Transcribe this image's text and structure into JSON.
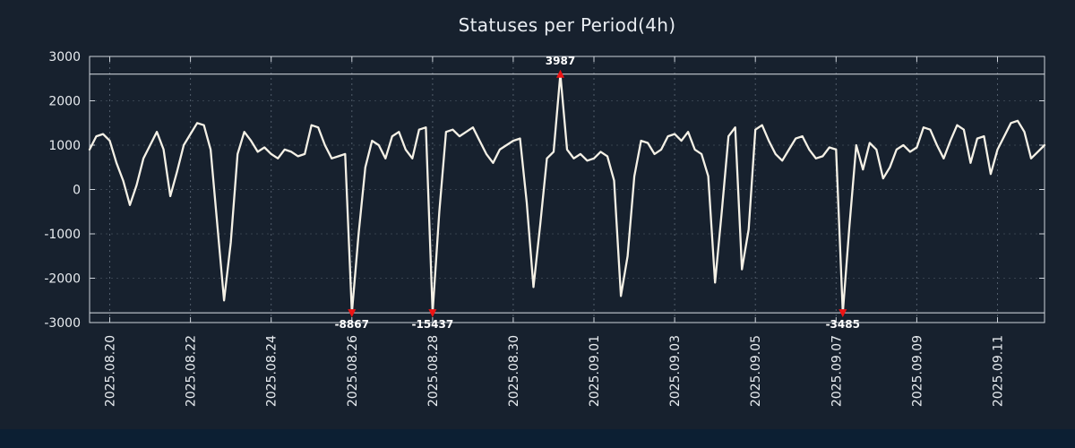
{
  "page": {
    "background_color": "#17212e",
    "footer_band_color": "#0c1f33"
  },
  "chart_data": {
    "type": "line",
    "title": "Statuses per Period(4h)",
    "xlabel": "",
    "ylabel": "",
    "ylim": [
      -3000,
      3000
    ],
    "yticks": [
      3000,
      2000,
      1000,
      0,
      -1000,
      -2000,
      -3000
    ],
    "grid": true,
    "legend_position": "none",
    "line_color": "#f5f1e6",
    "marker_color": "#ee1414",
    "clip_top": 2600,
    "clip_bottom": -2780,
    "x_tick_labels": [
      "2025.08.20",
      "2025.08.22",
      "2025.08.24",
      "2025.08.26",
      "2025.08.28",
      "2025.08.30",
      "2025.09.01",
      "2025.09.03",
      "2025.09.05",
      "2025.09.07",
      "2025.09.09",
      "2025.09.11"
    ],
    "x_tick_indices": [
      3,
      15,
      27,
      39,
      51,
      63,
      75,
      87,
      99,
      111,
      123,
      135
    ],
    "period_hours": 4,
    "values": [
      900,
      1200,
      1250,
      1100,
      600,
      200,
      -350,
      100,
      700,
      1000,
      1300,
      900,
      -150,
      400,
      1000,
      1250,
      1500,
      1450,
      900,
      -800,
      -2500,
      -1200,
      800,
      1300,
      1100,
      850,
      950,
      800,
      700,
      900,
      850,
      750,
      800,
      1450,
      1400,
      1000,
      700,
      750,
      800,
      -8867,
      -1000,
      500,
      1100,
      1000,
      700,
      1200,
      1300,
      900,
      700,
      1350,
      1400,
      -15437,
      -500,
      1300,
      1350,
      1200,
      1300,
      1400,
      1100,
      800,
      600,
      900,
      1000,
      1100,
      1150,
      -300,
      -2200,
      -800,
      700,
      850,
      3987,
      900,
      700,
      800,
      650,
      700,
      850,
      750,
      200,
      -2400,
      -1500,
      300,
      1100,
      1050,
      800,
      900,
      1200,
      1250,
      1100,
      1300,
      900,
      800,
      300,
      -2100,
      -500,
      1200,
      1400,
      -1800,
      -900,
      1350,
      1450,
      1100,
      800,
      650,
      900,
      1150,
      1200,
      900,
      700,
      750,
      950,
      900,
      -3485,
      -800,
      1000,
      450,
      1050,
      900,
      250,
      500,
      900,
      1000,
      850,
      950,
      1400,
      1350,
      1000,
      700,
      1100,
      1450,
      1350,
      600,
      1150,
      1200,
      350,
      900,
      1200,
      1500,
      1550,
      1300,
      700,
      850,
      1000
    ],
    "annotations": [
      {
        "index": 39,
        "value": -8867,
        "label": "-8867",
        "side": "bottom"
      },
      {
        "index": 51,
        "value": -15437,
        "label": "-15437",
        "side": "bottom"
      },
      {
        "index": 70,
        "value": 3987,
        "label": "3987",
        "side": "top"
      },
      {
        "index": 112,
        "value": -3485,
        "label": "-3485",
        "side": "bottom"
      }
    ]
  }
}
